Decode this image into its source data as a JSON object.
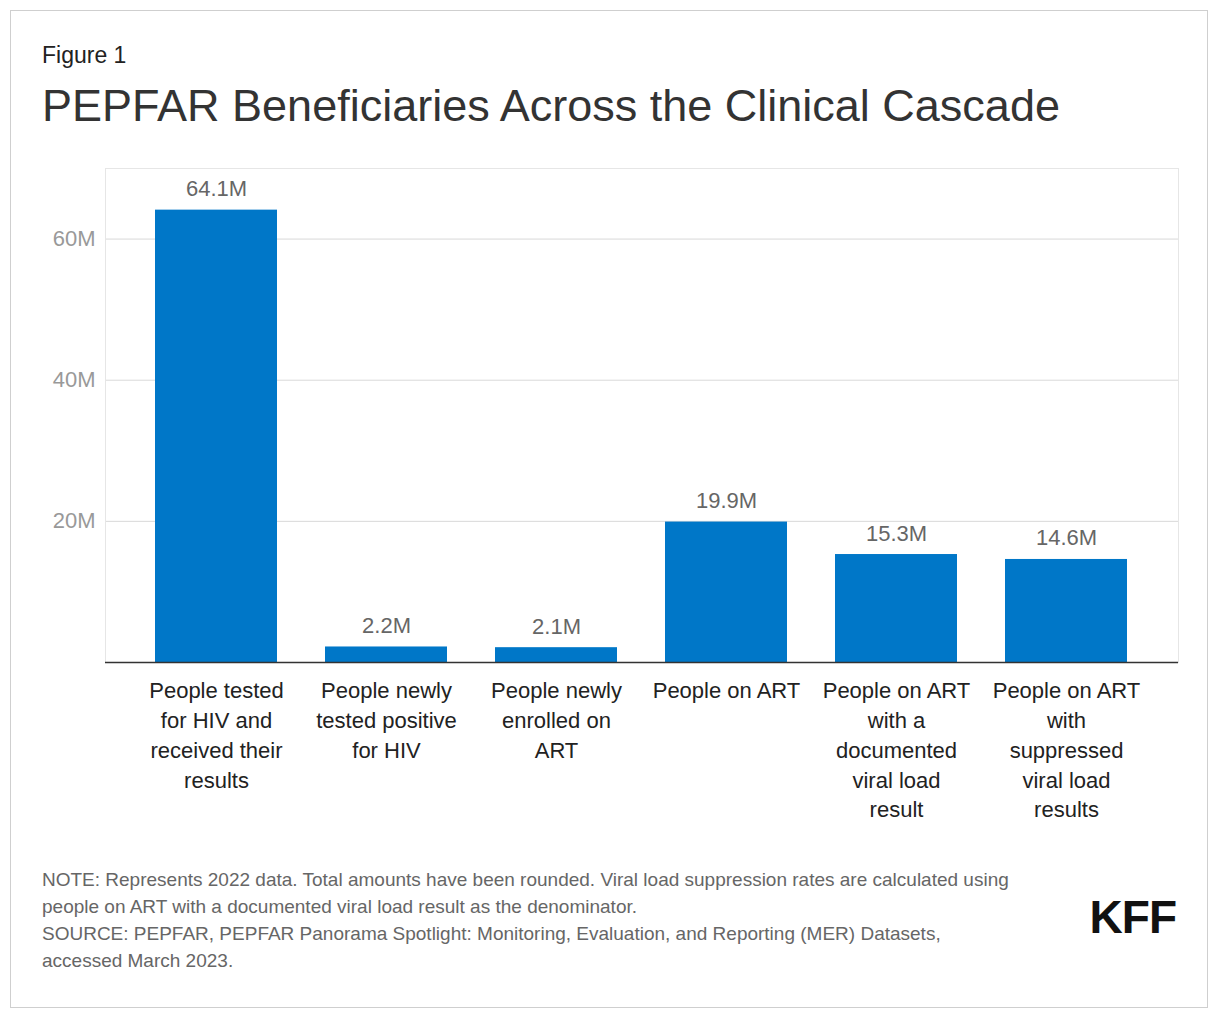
{
  "chart_data": {
    "type": "bar",
    "subtitle": "Figure 1",
    "title": "PEPFAR Beneficiaries Across the Clinical Cascade",
    "categories": [
      "People tested for HIV and received their results",
      "People newly tested positive for HIV",
      "People newly enrolled on ART",
      "People on ART",
      "People on ART with a documented viral load result",
      "People on ART with suppressed viral load results"
    ],
    "values": [
      64.1,
      2.2,
      2.1,
      19.9,
      15.3,
      14.6
    ],
    "value_labels": [
      "64.1M",
      "2.2M",
      "2.1M",
      "19.9M",
      "15.3M",
      "14.6M"
    ],
    "color": "#0077c8",
    "ylim": [
      0,
      70
    ],
    "yticks": [
      {
        "value": 20,
        "label": "20M"
      },
      {
        "value": 40,
        "label": "40M"
      },
      {
        "value": 60,
        "label": "60M"
      }
    ],
    "grid": true,
    "data_labels": true,
    "note": "NOTE: Represents 2022 data. Total amounts have been rounded. Viral load suppression rates are calculated using people on ART with a documented viral load result as the denominator.",
    "source": "SOURCE: PEPFAR, PEPFAR Panorama Spotlight: Monitoring, Evaluation, and Reporting (MER) Datasets, accessed March 2023.",
    "logo": "KFF"
  }
}
